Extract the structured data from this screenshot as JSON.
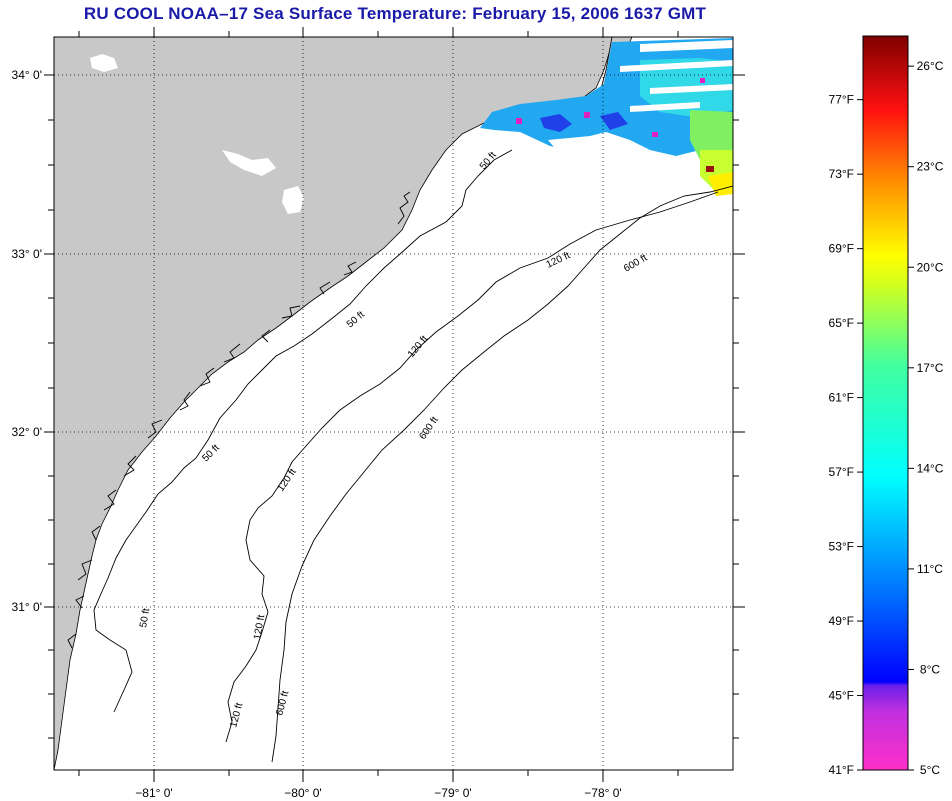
{
  "title": "RU COOL  NOAA–17  Sea Surface Temperature:  February 15, 2006 1637 GMT",
  "map": {
    "lat_labels": [
      {
        "lat": 34,
        "text": "34° 0'"
      },
      {
        "lat": 33,
        "text": "33° 0'"
      },
      {
        "lat": 32,
        "text": "32° 0'"
      },
      {
        "lat": 31,
        "text": "31° 0'"
      }
    ],
    "lon_labels": [
      {
        "lon": -81,
        "text": "−81° 0'"
      },
      {
        "lon": -80,
        "text": "−80° 0'"
      },
      {
        "lon": -79,
        "text": "−79° 0'"
      },
      {
        "lon": -78,
        "text": "−78° 0'"
      }
    ],
    "contours": [
      {
        "label": "50 ft"
      },
      {
        "label": "120 ft"
      },
      {
        "label": "600 ft"
      }
    ],
    "colors": {
      "land": "#c8c8c8",
      "ocean": "#ffffff",
      "coast": "#000000",
      "grid": "#000000"
    }
  },
  "colorbar": {
    "fahrenheit": [
      "77°F",
      "73°F",
      "69°F",
      "65°F",
      "61°F",
      "57°F",
      "53°F",
      "49°F",
      "45°F",
      "41°F"
    ],
    "celsius": [
      "26°C",
      "23°C",
      "20°C",
      "17°C",
      "14°C",
      "11°C",
      "8°C",
      "5°C"
    ]
  }
}
